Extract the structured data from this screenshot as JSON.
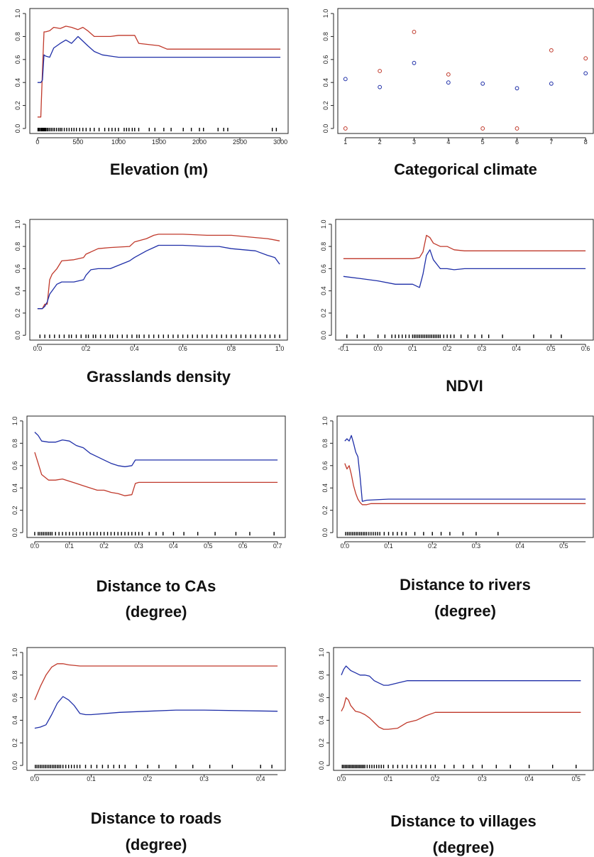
{
  "colors": {
    "red_series": "#c0392b",
    "blue_series": "#1f2fa8",
    "axis": "#222222"
  },
  "chart_data": [
    {
      "type": "line",
      "title": "Elevation (m)",
      "xlabel": "Elevation (m)",
      "ylabel": "",
      "xlim": [
        0,
        3000
      ],
      "ylim": [
        0,
        1
      ],
      "xticks": [
        "0",
        "500",
        "1000",
        "1500",
        "2000",
        "2500",
        "3000"
      ],
      "yticks": [
        "0.0",
        "0.2",
        "0.4",
        "0.6",
        "0.8",
        "1.0"
      ],
      "series": [
        {
          "color": "red",
          "x": [
            0,
            40,
            60,
            80,
            100,
            150,
            200,
            280,
            350,
            420,
            500,
            560,
            620,
            700,
            800,
            900,
            1000,
            1100,
            1200,
            1250,
            1500,
            1600,
            3000
          ],
          "y": [
            0.1,
            0.1,
            0.5,
            0.84,
            0.84,
            0.85,
            0.88,
            0.87,
            0.89,
            0.88,
            0.86,
            0.88,
            0.85,
            0.8,
            0.8,
            0.8,
            0.81,
            0.81,
            0.81,
            0.74,
            0.72,
            0.69,
            0.69
          ]
        },
        {
          "color": "blue",
          "x": [
            0,
            40,
            60,
            80,
            100,
            150,
            200,
            280,
            350,
            420,
            500,
            560,
            620,
            700,
            800,
            900,
            1000,
            1100,
            1200,
            1250,
            3000
          ],
          "y": [
            0.4,
            0.4,
            0.42,
            0.64,
            0.63,
            0.62,
            0.7,
            0.74,
            0.77,
            0.74,
            0.8,
            0.76,
            0.72,
            0.67,
            0.64,
            0.63,
            0.62,
            0.62,
            0.62,
            0.62,
            0.62
          ]
        }
      ],
      "rug": [
        5,
        15,
        25,
        40,
        50,
        60,
        70,
        80,
        90,
        100,
        115,
        130,
        150,
        170,
        190,
        210,
        235,
        260,
        280,
        300,
        330,
        360,
        390,
        420,
        450,
        480,
        520,
        560,
        600,
        650,
        700,
        760,
        830,
        880,
        920,
        960,
        1000,
        1070,
        1100,
        1130,
        1170,
        1200,
        1250,
        1380,
        1450,
        1560,
        1650,
        1800,
        1900,
        2000,
        2050,
        2230,
        2300,
        2350,
        2900,
        2950
      ]
    },
    {
      "type": "scatter",
      "title": "Categorical climate",
      "xlabel": "Categorical climate",
      "ylabel": "",
      "xlim": [
        1,
        8
      ],
      "ylim": [
        0,
        1
      ],
      "xticks": [
        "1",
        "2",
        "3",
        "4",
        "5",
        "6",
        "7",
        "8"
      ],
      "yticks": [
        "0.0",
        "0.2",
        "0.4",
        "0.6",
        "0.8",
        "1.0"
      ],
      "categories": [
        "1",
        "2",
        "3",
        "4",
        "5",
        "6",
        "7",
        "8"
      ],
      "series": [
        {
          "color": "red",
          "values": [
            0.0,
            0.5,
            0.84,
            0.47,
            0.0,
            0.0,
            0.68,
            0.61
          ]
        },
        {
          "color": "blue",
          "values": [
            0.43,
            0.36,
            0.57,
            0.4,
            0.39,
            0.35,
            0.39,
            0.48
          ]
        }
      ]
    },
    {
      "type": "line",
      "title": "Grasslands density",
      "xlabel": "Grasslands density",
      "ylabel": "",
      "xlim": [
        0,
        1
      ],
      "ylim": [
        0,
        1
      ],
      "xticks": [
        "0.0",
        "0.2",
        "0.4",
        "0.6",
        "0.8",
        "1.0"
      ],
      "yticks": [
        "0.0",
        "0.2",
        "0.4",
        "0.6",
        "0.8",
        "1.0"
      ],
      "series": [
        {
          "color": "red",
          "x": [
            0,
            0.02,
            0.03,
            0.04,
            0.05,
            0.06,
            0.08,
            0.1,
            0.15,
            0.19,
            0.2,
            0.25,
            0.3,
            0.38,
            0.4,
            0.45,
            0.48,
            0.5,
            0.6,
            0.7,
            0.8,
            0.9,
            0.95,
            1.0
          ],
          "y": [
            0.24,
            0.24,
            0.28,
            0.28,
            0.5,
            0.55,
            0.6,
            0.67,
            0.68,
            0.7,
            0.73,
            0.78,
            0.79,
            0.8,
            0.84,
            0.87,
            0.9,
            0.91,
            0.91,
            0.9,
            0.9,
            0.88,
            0.87,
            0.85
          ]
        },
        {
          "color": "blue",
          "x": [
            0,
            0.02,
            0.03,
            0.04,
            0.05,
            0.06,
            0.08,
            0.1,
            0.15,
            0.19,
            0.2,
            0.22,
            0.25,
            0.3,
            0.38,
            0.4,
            0.45,
            0.48,
            0.5,
            0.6,
            0.7,
            0.75,
            0.8,
            0.9,
            0.95,
            0.98,
            1.0
          ],
          "y": [
            0.24,
            0.24,
            0.26,
            0.3,
            0.37,
            0.4,
            0.46,
            0.48,
            0.48,
            0.5,
            0.54,
            0.59,
            0.6,
            0.6,
            0.67,
            0.7,
            0.76,
            0.79,
            0.81,
            0.81,
            0.8,
            0.8,
            0.78,
            0.76,
            0.72,
            0.7,
            0.64
          ]
        }
      ],
      "rug": [
        0.01,
        0.03,
        0.05,
        0.07,
        0.09,
        0.11,
        0.13,
        0.14,
        0.16,
        0.18,
        0.2,
        0.21,
        0.23,
        0.24,
        0.26,
        0.28,
        0.3,
        0.31,
        0.33,
        0.35,
        0.37,
        0.39,
        0.41,
        0.42,
        0.44,
        0.46,
        0.48,
        0.5,
        0.52,
        0.54,
        0.56,
        0.58,
        0.6,
        0.62,
        0.64,
        0.66,
        0.68,
        0.7,
        0.72,
        0.74,
        0.76,
        0.78,
        0.8,
        0.82,
        0.84,
        0.86,
        0.88,
        0.9,
        0.92,
        0.94,
        0.96,
        0.98,
        1.0
      ]
    },
    {
      "type": "line",
      "title": "NDVI",
      "xlabel": "NDVI",
      "ylabel": "",
      "xlim": [
        -0.1,
        0.6
      ],
      "ylim": [
        0,
        1
      ],
      "xticks": [
        "-0.1",
        "0.0",
        "0.1",
        "0.2",
        "0.3",
        "0.4",
        "0.5",
        "0.6"
      ],
      "yticks": [
        "0.0",
        "0.2",
        "0.4",
        "0.6",
        "0.8",
        "1.0"
      ],
      "series": [
        {
          "color": "red",
          "x": [
            -0.1,
            0.0,
            0.05,
            0.1,
            0.12,
            0.13,
            0.14,
            0.15,
            0.16,
            0.18,
            0.2,
            0.22,
            0.25,
            0.3,
            0.6
          ],
          "y": [
            0.69,
            0.69,
            0.69,
            0.69,
            0.7,
            0.75,
            0.9,
            0.88,
            0.83,
            0.8,
            0.8,
            0.77,
            0.76,
            0.76,
            0.76
          ]
        },
        {
          "color": "blue",
          "x": [
            -0.1,
            -0.05,
            0.0,
            0.05,
            0.1,
            0.12,
            0.13,
            0.14,
            0.15,
            0.16,
            0.18,
            0.2,
            0.22,
            0.25,
            0.3,
            0.6
          ],
          "y": [
            0.53,
            0.51,
            0.49,
            0.46,
            0.46,
            0.43,
            0.55,
            0.72,
            0.77,
            0.68,
            0.6,
            0.6,
            0.59,
            0.6,
            0.6,
            0.6
          ]
        }
      ],
      "rug": [
        -0.09,
        -0.06,
        -0.04,
        0.0,
        0.02,
        0.04,
        0.05,
        0.06,
        0.07,
        0.08,
        0.09,
        0.1,
        0.105,
        0.11,
        0.115,
        0.12,
        0.125,
        0.13,
        0.135,
        0.14,
        0.145,
        0.15,
        0.155,
        0.16,
        0.165,
        0.17,
        0.175,
        0.18,
        0.19,
        0.2,
        0.21,
        0.22,
        0.24,
        0.26,
        0.28,
        0.3,
        0.32,
        0.36,
        0.45,
        0.5,
        0.53
      ]
    },
    {
      "type": "line",
      "title": "Distance to CAs",
      "title_line2": "(degree)",
      "xlabel": "Distance to CAs (degree)",
      "ylabel": "",
      "xlim": [
        0,
        0.7
      ],
      "ylim": [
        0,
        1
      ],
      "xticks": [
        "0.0",
        "0.1",
        "0.2",
        "0.3",
        "0.4",
        "0.5",
        "0.6",
        "0.7"
      ],
      "yticks": [
        "0.0",
        "0.2",
        "0.4",
        "0.6",
        "0.8",
        "1.0"
      ],
      "series": [
        {
          "color": "blue",
          "x": [
            0,
            0.01,
            0.02,
            0.04,
            0.06,
            0.08,
            0.1,
            0.12,
            0.14,
            0.16,
            0.18,
            0.2,
            0.22,
            0.24,
            0.26,
            0.28,
            0.29,
            0.3,
            0.4,
            0.7
          ],
          "y": [
            0.9,
            0.87,
            0.82,
            0.81,
            0.81,
            0.83,
            0.82,
            0.78,
            0.76,
            0.71,
            0.68,
            0.65,
            0.62,
            0.6,
            0.59,
            0.6,
            0.65,
            0.65,
            0.65,
            0.65
          ]
        },
        {
          "color": "red",
          "x": [
            0,
            0.01,
            0.02,
            0.04,
            0.06,
            0.08,
            0.1,
            0.12,
            0.14,
            0.16,
            0.18,
            0.2,
            0.22,
            0.24,
            0.26,
            0.28,
            0.29,
            0.3,
            0.4,
            0.7
          ],
          "y": [
            0.72,
            0.62,
            0.52,
            0.47,
            0.47,
            0.48,
            0.46,
            0.44,
            0.42,
            0.4,
            0.38,
            0.38,
            0.36,
            0.35,
            0.33,
            0.34,
            0.44,
            0.45,
            0.45,
            0.45
          ]
        }
      ],
      "rug": [
        0.0,
        0.01,
        0.015,
        0.02,
        0.025,
        0.03,
        0.035,
        0.04,
        0.045,
        0.05,
        0.06,
        0.07,
        0.08,
        0.09,
        0.1,
        0.11,
        0.12,
        0.13,
        0.14,
        0.15,
        0.16,
        0.17,
        0.18,
        0.19,
        0.2,
        0.21,
        0.22,
        0.23,
        0.24,
        0.25,
        0.26,
        0.27,
        0.28,
        0.29,
        0.3,
        0.31,
        0.33,
        0.35,
        0.37,
        0.4,
        0.43,
        0.47,
        0.52,
        0.58,
        0.62,
        0.69
      ]
    },
    {
      "type": "line",
      "title": "Distance to rivers",
      "title_line2": "(degree)",
      "xlabel": "Distance to rivers (degree)",
      "ylabel": "",
      "xlim": [
        0,
        0.55
      ],
      "ylim": [
        0,
        1
      ],
      "xticks": [
        "0.0",
        "0.1",
        "0.2",
        "0.3",
        "0.4",
        "0.5"
      ],
      "yticks": [
        "0.0",
        "0.2",
        "0.4",
        "0.6",
        "0.8",
        "1.0"
      ],
      "series": [
        {
          "color": "blue",
          "x": [
            0,
            0.005,
            0.01,
            0.015,
            0.02,
            0.025,
            0.03,
            0.035,
            0.04,
            0.05,
            0.1,
            0.55
          ],
          "y": [
            0.82,
            0.84,
            0.82,
            0.87,
            0.8,
            0.72,
            0.68,
            0.5,
            0.28,
            0.29,
            0.3,
            0.3
          ]
        },
        {
          "color": "red",
          "x": [
            0,
            0.005,
            0.01,
            0.015,
            0.02,
            0.025,
            0.03,
            0.035,
            0.04,
            0.05,
            0.06,
            0.1,
            0.55
          ],
          "y": [
            0.62,
            0.57,
            0.6,
            0.52,
            0.42,
            0.35,
            0.3,
            0.27,
            0.25,
            0.25,
            0.26,
            0.26,
            0.26
          ]
        }
      ],
      "rug": [
        0.002,
        0.006,
        0.01,
        0.014,
        0.018,
        0.022,
        0.026,
        0.03,
        0.034,
        0.038,
        0.042,
        0.046,
        0.05,
        0.055,
        0.06,
        0.065,
        0.07,
        0.075,
        0.08,
        0.09,
        0.1,
        0.11,
        0.12,
        0.13,
        0.14,
        0.16,
        0.18,
        0.2,
        0.22,
        0.24,
        0.27,
        0.3,
        0.35
      ]
    },
    {
      "type": "line",
      "title": "Distance to roads",
      "title_line2": "(degree)",
      "xlabel": "Distance to roads (degree)",
      "ylabel": "",
      "xlim": [
        0,
        0.43
      ],
      "ylim": [
        0,
        1
      ],
      "xticks": [
        "0.0",
        "0.1",
        "0.2",
        "0.3",
        "0.4"
      ],
      "yticks": [
        "0.0",
        "0.2",
        "0.4",
        "0.6",
        "0.8",
        "1.0"
      ],
      "series": [
        {
          "color": "red",
          "x": [
            0,
            0.01,
            0.02,
            0.03,
            0.04,
            0.05,
            0.06,
            0.08,
            0.1,
            0.2,
            0.3,
            0.43
          ],
          "y": [
            0.58,
            0.7,
            0.8,
            0.87,
            0.9,
            0.9,
            0.89,
            0.88,
            0.88,
            0.88,
            0.88,
            0.88
          ]
        },
        {
          "color": "blue",
          "x": [
            0,
            0.01,
            0.02,
            0.03,
            0.04,
            0.05,
            0.06,
            0.07,
            0.08,
            0.09,
            0.1,
            0.15,
            0.2,
            0.25,
            0.3,
            0.43
          ],
          "y": [
            0.33,
            0.34,
            0.36,
            0.45,
            0.55,
            0.61,
            0.58,
            0.53,
            0.46,
            0.45,
            0.45,
            0.47,
            0.48,
            0.49,
            0.49,
            0.48
          ]
        }
      ],
      "rug": [
        0.001,
        0.004,
        0.007,
        0.01,
        0.013,
        0.016,
        0.019,
        0.022,
        0.025,
        0.028,
        0.031,
        0.034,
        0.037,
        0.04,
        0.043,
        0.046,
        0.05,
        0.055,
        0.06,
        0.065,
        0.07,
        0.075,
        0.08,
        0.09,
        0.1,
        0.11,
        0.12,
        0.13,
        0.14,
        0.15,
        0.16,
        0.18,
        0.2,
        0.22,
        0.25,
        0.28,
        0.31,
        0.35,
        0.4,
        0.42
      ]
    },
    {
      "type": "line",
      "title": "Distance to villages",
      "title_line2": "(degree)",
      "xlabel": "Distance to villages (degree)",
      "ylabel": "",
      "xlim": [
        0,
        0.52
      ],
      "ylim": [
        0,
        1
      ],
      "xticks": [
        "0.0",
        "0.1",
        "0.2",
        "0.3",
        "0.4",
        "0.5"
      ],
      "yticks": [
        "0.0",
        "0.2",
        "0.4",
        "0.6",
        "0.8",
        "1.0"
      ],
      "series": [
        {
          "color": "blue",
          "x": [
            0,
            0.005,
            0.01,
            0.015,
            0.02,
            0.03,
            0.04,
            0.05,
            0.06,
            0.07,
            0.08,
            0.09,
            0.1,
            0.12,
            0.14,
            0.16,
            0.2,
            0.3,
            0.51
          ],
          "y": [
            0.8,
            0.85,
            0.88,
            0.86,
            0.84,
            0.82,
            0.8,
            0.8,
            0.79,
            0.75,
            0.73,
            0.71,
            0.71,
            0.73,
            0.75,
            0.75,
            0.75,
            0.75,
            0.75
          ]
        },
        {
          "color": "red",
          "x": [
            0,
            0.005,
            0.01,
            0.015,
            0.02,
            0.03,
            0.04,
            0.05,
            0.06,
            0.07,
            0.08,
            0.09,
            0.1,
            0.12,
            0.14,
            0.16,
            0.18,
            0.2,
            0.3,
            0.51
          ],
          "y": [
            0.48,
            0.52,
            0.6,
            0.58,
            0.53,
            0.48,
            0.47,
            0.45,
            0.42,
            0.38,
            0.34,
            0.32,
            0.32,
            0.33,
            0.38,
            0.4,
            0.44,
            0.47,
            0.47,
            0.47
          ]
        }
      ],
      "rug": [
        0.002,
        0.005,
        0.008,
        0.011,
        0.014,
        0.017,
        0.02,
        0.023,
        0.026,
        0.029,
        0.032,
        0.035,
        0.038,
        0.041,
        0.044,
        0.047,
        0.05,
        0.055,
        0.06,
        0.065,
        0.07,
        0.075,
        0.08,
        0.085,
        0.09,
        0.1,
        0.11,
        0.12,
        0.13,
        0.14,
        0.15,
        0.16,
        0.17,
        0.18,
        0.19,
        0.2,
        0.22,
        0.24,
        0.26,
        0.28,
        0.3,
        0.33,
        0.36,
        0.4,
        0.45,
        0.5
      ]
    }
  ]
}
